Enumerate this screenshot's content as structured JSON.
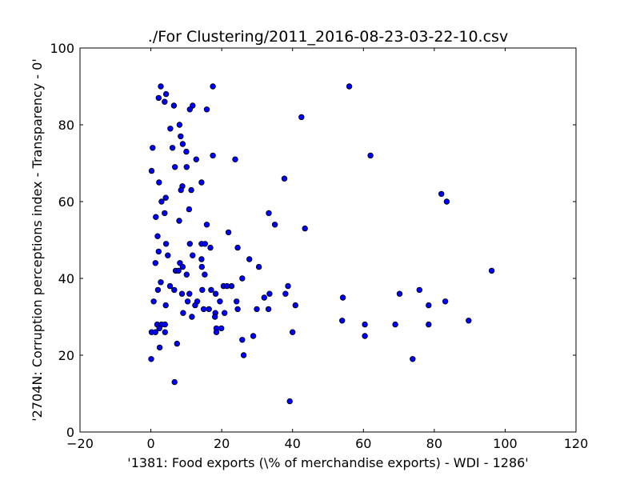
{
  "chart_data": {
    "type": "scatter",
    "title": "./For Clustering/2011_2016-08-23-03-22-10.csv",
    "xlabel": "'1381: Food exports  (\\% of merchandise exports) - WDI - 1286'",
    "ylabel": "'2704N: Corruption perceptions index - Transparency - 0'",
    "xlim": [
      -20,
      120
    ],
    "ylim": [
      0,
      100
    ],
    "xticks": [
      "−20",
      "0",
      "20",
      "40",
      "60",
      "80",
      "100",
      "120"
    ],
    "yticks": [
      "0",
      "20",
      "40",
      "60",
      "80",
      "100"
    ],
    "grid": false,
    "legend": "none",
    "marker_color": "#0000ff",
    "points": [
      [
        2.8,
        90
      ],
      [
        17.5,
        90
      ],
      [
        56,
        90
      ],
      [
        4.3,
        88
      ],
      [
        2.2,
        87
      ],
      [
        3.9,
        86
      ],
      [
        6.5,
        85
      ],
      [
        11.8,
        85
      ],
      [
        11,
        84
      ],
      [
        15.8,
        84
      ],
      [
        42.5,
        82
      ],
      [
        8.1,
        80
      ],
      [
        5.5,
        79
      ],
      [
        8.4,
        77
      ],
      [
        9,
        75
      ],
      [
        0.5,
        74
      ],
      [
        6.1,
        74
      ],
      [
        10,
        73
      ],
      [
        17.5,
        72
      ],
      [
        62,
        72
      ],
      [
        12.8,
        71
      ],
      [
        23.8,
        71
      ],
      [
        6.8,
        69
      ],
      [
        10.1,
        69
      ],
      [
        0.2,
        68
      ],
      [
        37.7,
        66
      ],
      [
        2.3,
        65
      ],
      [
        14.3,
        65
      ],
      [
        8.9,
        64
      ],
      [
        8.5,
        63
      ],
      [
        11.4,
        63
      ],
      [
        82,
        62
      ],
      [
        4.2,
        61
      ],
      [
        3,
        60
      ],
      [
        83.5,
        60
      ],
      [
        10.8,
        58
      ],
      [
        3.9,
        57
      ],
      [
        33.3,
        57
      ],
      [
        1.4,
        56
      ],
      [
        8,
        55
      ],
      [
        15.8,
        54
      ],
      [
        35,
        54
      ],
      [
        43.5,
        53
      ],
      [
        21.9,
        52
      ],
      [
        1.9,
        51
      ],
      [
        4.3,
        49
      ],
      [
        11,
        49
      ],
      [
        14.3,
        49
      ],
      [
        15.3,
        49
      ],
      [
        16.8,
        48
      ],
      [
        24.5,
        48
      ],
      [
        2.2,
        47
      ],
      [
        4.8,
        46
      ],
      [
        11.8,
        46
      ],
      [
        14.3,
        45
      ],
      [
        27.8,
        45
      ],
      [
        1.3,
        44
      ],
      [
        8.2,
        44
      ],
      [
        9,
        43
      ],
      [
        14.4,
        43
      ],
      [
        30.5,
        43
      ],
      [
        7,
        42
      ],
      [
        7.8,
        42
      ],
      [
        96.2,
        42
      ],
      [
        10.1,
        41
      ],
      [
        15.2,
        41
      ],
      [
        25.8,
        40
      ],
      [
        2.8,
        39
      ],
      [
        5.4,
        38
      ],
      [
        20.5,
        38
      ],
      [
        21.5,
        38
      ],
      [
        22.8,
        38
      ],
      [
        38.7,
        38
      ],
      [
        2,
        37
      ],
      [
        6.6,
        37
      ],
      [
        14.5,
        37
      ],
      [
        17,
        37
      ],
      [
        75.8,
        37
      ],
      [
        8.8,
        36
      ],
      [
        10.9,
        36
      ],
      [
        18.3,
        36
      ],
      [
        33.5,
        36
      ],
      [
        38,
        36
      ],
      [
        70.2,
        36
      ],
      [
        32,
        35
      ],
      [
        54.2,
        35
      ],
      [
        0.8,
        34
      ],
      [
        10.4,
        34
      ],
      [
        13.1,
        34
      ],
      [
        19.5,
        34
      ],
      [
        24.2,
        34
      ],
      [
        83.1,
        34
      ],
      [
        4.2,
        33
      ],
      [
        12.5,
        33
      ],
      [
        40.8,
        33
      ],
      [
        78.4,
        33
      ],
      [
        14.9,
        32
      ],
      [
        16.4,
        32
      ],
      [
        24.5,
        32
      ],
      [
        29.9,
        32
      ],
      [
        33.2,
        32
      ],
      [
        9.1,
        31
      ],
      [
        18.2,
        31
      ],
      [
        20.8,
        31
      ],
      [
        11.6,
        30
      ],
      [
        18.1,
        30
      ],
      [
        54,
        29
      ],
      [
        89.7,
        29
      ],
      [
        1.8,
        28
      ],
      [
        3,
        28
      ],
      [
        4,
        28
      ],
      [
        60.4,
        28
      ],
      [
        69,
        28
      ],
      [
        78.4,
        28
      ],
      [
        2.4,
        27
      ],
      [
        18.5,
        27
      ],
      [
        19.9,
        27
      ],
      [
        0.2,
        26
      ],
      [
        1.3,
        26
      ],
      [
        4,
        26
      ],
      [
        18.5,
        26
      ],
      [
        40,
        26
      ],
      [
        28.9,
        25
      ],
      [
        60.4,
        25
      ],
      [
        25.8,
        24
      ],
      [
        7.4,
        23
      ],
      [
        2.5,
        22
      ],
      [
        26.2,
        20
      ],
      [
        0.1,
        19
      ],
      [
        73.9,
        19
      ],
      [
        6.7,
        13
      ],
      [
        39.2,
        8
      ]
    ]
  }
}
